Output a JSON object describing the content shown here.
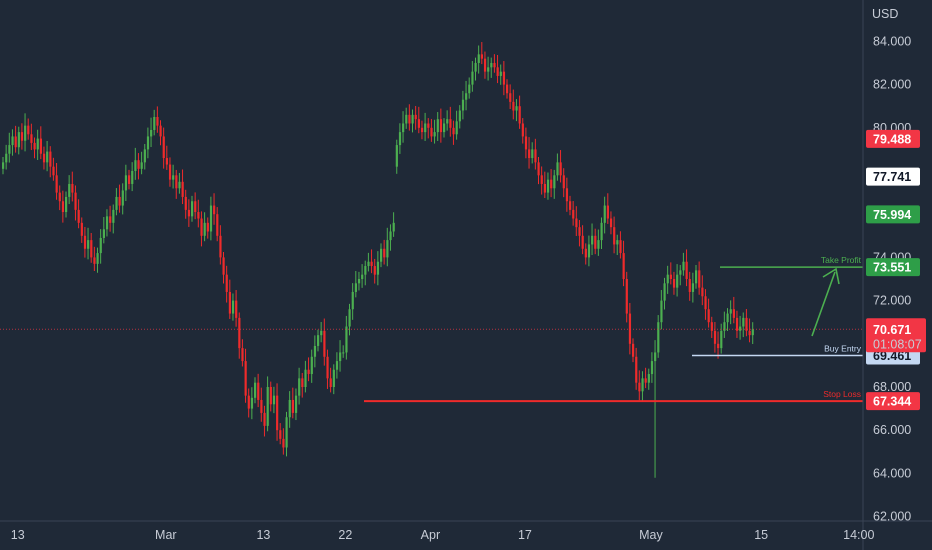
{
  "currency": "USD",
  "chart_data": {
    "type": "candlestick",
    "y_ticks": [
      62,
      64,
      66,
      68,
      72,
      74,
      80,
      82,
      84
    ],
    "y_tick_labels": [
      "62.000",
      "64.000",
      "66.000",
      "68.000",
      "72.000",
      "74.000",
      "80.000",
      "82.000",
      "84.000"
    ],
    "x_ticks": [
      {
        "label": "13",
        "bar": 5
      },
      {
        "label": "Mar",
        "bar": 52
      },
      {
        "label": "13",
        "bar": 83
      },
      {
        "label": "22",
        "bar": 109
      },
      {
        "label": "Apr",
        "bar": 136
      },
      {
        "label": "17",
        "bar": 166
      },
      {
        "label": "May",
        "bar": 206
      },
      {
        "label": "15",
        "bar": 241
      },
      {
        "label": "14:00",
        "bar": 272
      }
    ],
    "closes": [
      78.4,
      78.8,
      79.2,
      79.6,
      79.1,
      79.8,
      79.4,
      80.1,
      79.7,
      79.3,
      79.0,
      79.5,
      78.8,
      78.4,
      78.9,
      78.2,
      77.8,
      77.0,
      76.6,
      76.1,
      76.8,
      77.4,
      77.0,
      76.2,
      75.6,
      75.0,
      74.4,
      74.8,
      74.0,
      73.7,
      74.2,
      74.9,
      75.3,
      75.9,
      75.6,
      76.2,
      76.8,
      76.4,
      77.1,
      77.8,
      77.4,
      78.0,
      78.5,
      78.1,
      78.4,
      79.0,
      79.6,
      79.9,
      80.5,
      80.1,
      79.6,
      78.6,
      78.3,
      77.6,
      77.8,
      77.2,
      77.5,
      76.8,
      76.2,
      75.9,
      76.6,
      76.1,
      75.8,
      75.0,
      75.6,
      75.2,
      76.4,
      76.0,
      75.0,
      74.0,
      73.2,
      72.4,
      71.4,
      72.0,
      71.2,
      69.8,
      69.2,
      67.6,
      67.0,
      67.5,
      68.2,
      67.4,
      66.8,
      66.2,
      68.0,
      67.2,
      67.6,
      66.0,
      65.6,
      65.2,
      66.6,
      67.4,
      66.8,
      67.6,
      68.4,
      68.0,
      68.8,
      68.6,
      69.4,
      69.9,
      70.4,
      70.6,
      69.4,
      68.4,
      68.0,
      68.8,
      69.2,
      69.6,
      69.6,
      70.8,
      71.6,
      72.4,
      72.8,
      73.0,
      73.2,
      73.6,
      73.8,
      73.6,
      73.2,
      73.8,
      74.4,
      74.0,
      74.8,
      75.2,
      75.6,
      79.2,
      79.8,
      80.2,
      80.6,
      80.2,
      80.6,
      80.4,
      80.0,
      79.8,
      80.2,
      80.0,
      79.6,
      79.8,
      80.4,
      79.8,
      80.2,
      80.4,
      80.0,
      79.7,
      80.3,
      80.8,
      81.3,
      81.6,
      82.0,
      82.6,
      83.0,
      83.4,
      83.2,
      82.6,
      82.8,
      83.0,
      82.8,
      82.4,
      82.6,
      82.0,
      81.6,
      81.2,
      80.8,
      81.0,
      80.2,
      79.6,
      79.0,
      78.6,
      79.0,
      78.4,
      77.8,
      77.4,
      77.0,
      77.6,
      77.2,
      77.8,
      78.4,
      77.8,
      77.2,
      76.6,
      76.2,
      75.8,
      75.4,
      75.0,
      74.4,
      74.0,
      74.6,
      75.0,
      74.4,
      74.8,
      75.6,
      76.4,
      75.8,
      75.4,
      74.6,
      74.8,
      74.2,
      73.0,
      71.4,
      70.0,
      69.4,
      68.2,
      67.8,
      68.4,
      68.2,
      68.6,
      69.2,
      69.6,
      71.0,
      72.0,
      72.8,
      73.2,
      73.0,
      72.6,
      73.2,
      73.4,
      73.8,
      73.0,
      72.4,
      72.8,
      73.4,
      72.6,
      72.2,
      71.6,
      71.0,
      70.6,
      70.0,
      69.8,
      70.6,
      71.0,
      71.4,
      71.6,
      71.2,
      70.6,
      70.8,
      71.2,
      70.6,
      70.4,
      70.671
    ],
    "gap_after_bar": 124,
    "long_wick": {
      "bar": 207,
      "low": 63.8
    },
    "current_price": "70.671",
    "countdown": "01:08:07",
    "levels": [
      {
        "label": "Take Profit",
        "value": 73.551,
        "price": "73.551",
        "color": "#4caf50"
      },
      {
        "label": "Buy Entry",
        "value": 69.461,
        "price": "69.461",
        "color": "#c4d8f2"
      },
      {
        "label": "Stop Loss",
        "value": 67.344,
        "price": "67.344",
        "color": "#ef2b2b"
      }
    ],
    "extra_price_badges": [
      {
        "price": "79.488",
        "value": 79.488,
        "bg": "#f23645",
        "fg": "#ffffff"
      },
      {
        "price": "77.741",
        "value": 77.741,
        "bg": "#ffffff",
        "fg": "#111827"
      },
      {
        "price": "75.994",
        "value": 75.994,
        "bg": "#2e9e48",
        "fg": "#ffffff"
      }
    ],
    "colors": {
      "up": "#4caf50",
      "down": "#ef2b2b",
      "bg": "#1f2937",
      "axis": "#c7ccd6",
      "current": "#f23645"
    }
  }
}
